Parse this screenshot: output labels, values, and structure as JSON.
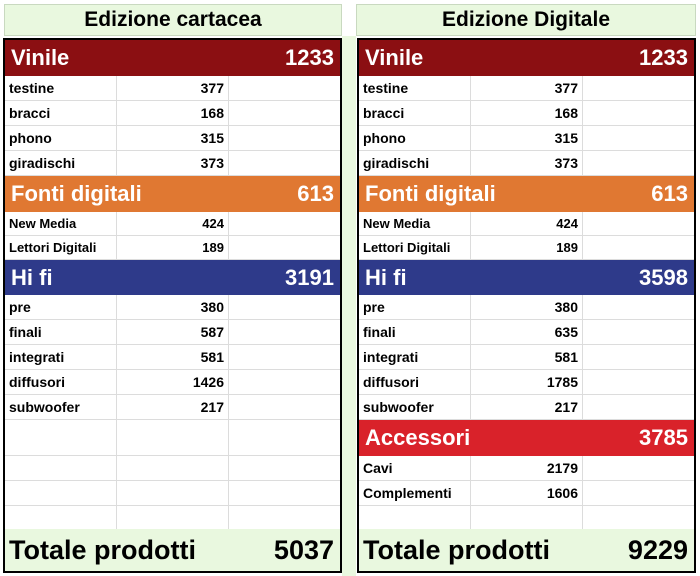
{
  "left": {
    "title": "Edizione cartacea",
    "sections": [
      {
        "name": "Vinile",
        "total": "1233",
        "color": "#8b0f12",
        "items": [
          {
            "label": "testine",
            "value": "377"
          },
          {
            "label": "bracci",
            "value": "168"
          },
          {
            "label": "phono",
            "value": "315"
          },
          {
            "label": "giradischi",
            "value": "373"
          }
        ]
      },
      {
        "name": "Fonti digitali",
        "total": "613",
        "color": "#e07832",
        "items": [
          {
            "label": "New Media",
            "value": "424"
          },
          {
            "label": "Lettori Digitali",
            "value": "189"
          }
        ]
      },
      {
        "name": "Hi fi",
        "total": "3191",
        "color": "#2e3a8a",
        "items": [
          {
            "label": "pre",
            "value": "380"
          },
          {
            "label": "finali",
            "value": "587"
          },
          {
            "label": "integrati",
            "value": "581"
          },
          {
            "label": "diffusori",
            "value": "1426"
          },
          {
            "label": "subwoofer",
            "value": "217"
          }
        ]
      }
    ],
    "total_label": "Totale prodotti",
    "total_value": "5037"
  },
  "right": {
    "title": "Edizione Digitale",
    "sections": [
      {
        "name": "Vinile",
        "total": "1233",
        "color": "#8b0f12",
        "items": [
          {
            "label": "testine",
            "value": "377"
          },
          {
            "label": "bracci",
            "value": "168"
          },
          {
            "label": "phono",
            "value": "315"
          },
          {
            "label": "giradischi",
            "value": "373"
          }
        ]
      },
      {
        "name": "Fonti digitali",
        "total": "613",
        "color": "#e07832",
        "items": [
          {
            "label": "New Media",
            "value": "424"
          },
          {
            "label": "Lettori Digitali",
            "value": "189"
          }
        ]
      },
      {
        "name": "Hi fi",
        "total": "3598",
        "color": "#2e3a8a",
        "items": [
          {
            "label": "pre",
            "value": "380"
          },
          {
            "label": "finali",
            "value": "635"
          },
          {
            "label": "integrati",
            "value": "581"
          },
          {
            "label": "diffusori",
            "value": "1785"
          },
          {
            "label": "subwoofer",
            "value": "217"
          }
        ]
      },
      {
        "name": "Accessori",
        "total": "3785",
        "color": "#d9222a",
        "items": [
          {
            "label": "Cavi",
            "value": "2179"
          },
          {
            "label": "Complementi",
            "value": "1606"
          }
        ]
      }
    ],
    "total_label": "Totale prodotti",
    "total_value": "9229"
  }
}
